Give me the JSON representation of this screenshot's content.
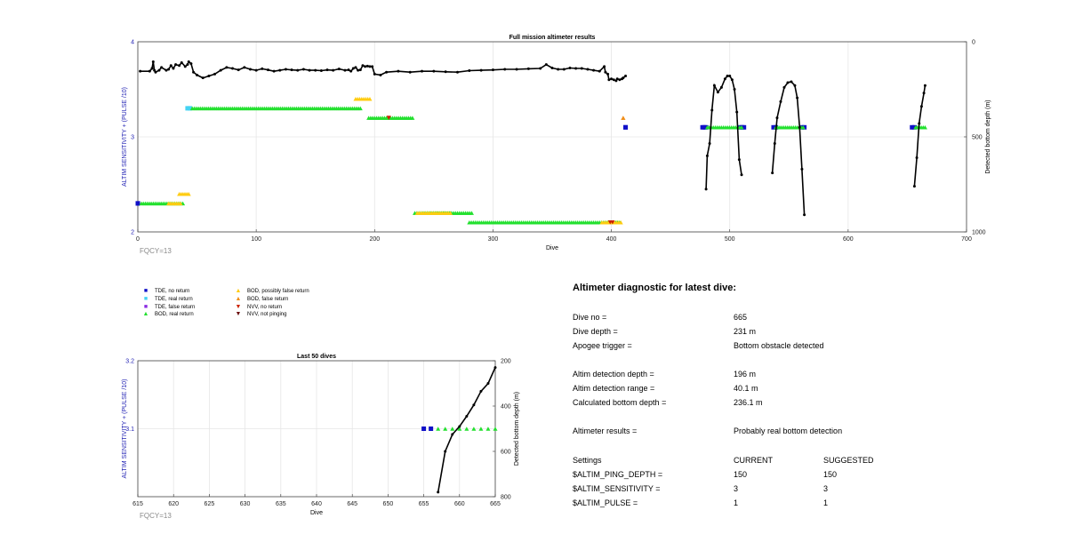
{
  "chart_data": [
    {
      "type": "scatter",
      "title": "Full mission altimeter results",
      "xlabel": "Dive",
      "ylabel": "ALTIM SENSITIVITY + (PULSE /10)",
      "y2label": "Detected bottom depth (m)",
      "xlim": [
        0,
        700
      ],
      "ylim": [
        2,
        4
      ],
      "y2lim": [
        0,
        1000
      ],
      "y2_reversed": true,
      "x_ticks": [
        "0",
        "100",
        "200",
        "300",
        "400",
        "500",
        "600",
        "700"
      ],
      "y_ticks": [
        "2",
        "3",
        "4"
      ],
      "y2_ticks": [
        "0",
        "500",
        "1000"
      ],
      "grid": true,
      "note": "FQCY=13",
      "series": [
        {
          "name": "TDE, real return",
          "marker": "square",
          "color": "#44d3f2",
          "segments": [
            [
              42,
              44,
              3.3
            ]
          ]
        },
        {
          "name": "TDE, no return",
          "marker": "square",
          "color": "#1010c8",
          "segments": [
            [
              0,
              0,
              2.3
            ],
            [
              412,
              412,
              3.1
            ],
            [
              477,
              480,
              3.1
            ],
            [
              509,
              512,
              3.1
            ],
            [
              537,
              539,
              3.1
            ],
            [
              561,
              563,
              3.1
            ],
            [
              654,
              656,
              3.1
            ]
          ]
        },
        {
          "name": "BOD, real return",
          "marker": "triangle",
          "color": "#22e02e",
          "segments": [
            [
              3,
              38,
              2.3
            ],
            [
              46,
              188,
              3.3
            ],
            [
              195,
              232,
              3.2
            ],
            [
              234,
              282,
              2.2
            ],
            [
              280,
              407,
              2.1
            ],
            [
              481,
              510,
              3.1
            ],
            [
              539,
              562,
              3.1
            ],
            [
              657,
              665,
              3.1
            ]
          ]
        },
        {
          "name": "BOD, possibly false return",
          "marker": "triangle",
          "color": "#ffcc11",
          "segments": [
            [
              35,
              43,
              2.4
            ],
            [
              184,
              196,
              3.4
            ],
            [
              26,
              36,
              2.3
            ],
            [
              236,
              264,
              2.2
            ],
            [
              392,
              408,
              2.1
            ]
          ]
        },
        {
          "name": "BOD, false return",
          "marker": "triangle",
          "color": "#f08e1a",
          "segments": [
            [
              410,
              410,
              3.2
            ]
          ]
        },
        {
          "name": "NVV, no return",
          "marker": "triangle-down",
          "color": "#cc2200",
          "segments": [
            [
              212,
              212,
              3.2
            ],
            [
              399,
              401,
              2.1
            ]
          ]
        }
      ],
      "bottom_depth": [
        {
          "x": [
            2,
            10,
            12,
            13,
            14,
            15,
            18,
            20,
            24,
            26,
            28,
            30,
            32,
            35,
            37,
            40,
            42,
            43,
            45,
            47,
            50,
            55,
            60,
            65,
            70,
            75,
            80,
            85,
            90,
            95,
            100,
            105,
            110,
            115,
            120,
            125,
            130,
            135,
            140,
            145,
            150,
            155,
            160,
            165,
            170,
            175,
            178,
            180,
            182,
            184,
            186,
            188,
            190,
            192,
            194,
            196,
            198,
            200,
            205,
            210,
            220,
            230,
            240,
            250,
            260,
            270,
            280,
            290,
            300,
            310,
            320,
            330,
            340,
            345,
            350,
            355,
            360,
            365,
            370,
            375,
            380,
            385,
            390,
            394,
            395,
            397,
            398,
            400,
            402,
            404,
            405,
            407,
            409,
            410,
            412
          ],
          "y": [
            155,
            155,
            140,
            105,
            150,
            160,
            150,
            135,
            150,
            145,
            125,
            140,
            120,
            125,
            110,
            130,
            120,
            105,
            115,
            160,
            175,
            190,
            180,
            170,
            150,
            135,
            140,
            148,
            135,
            145,
            150,
            142,
            148,
            155,
            150,
            145,
            148,
            150,
            145,
            150,
            150,
            152,
            148,
            150,
            143,
            150,
            148,
            155,
            140,
            135,
            150,
            148,
            125,
            130,
            128,
            130,
            130,
            170,
            175,
            160,
            155,
            160,
            155,
            155,
            158,
            160,
            152,
            150,
            148,
            145,
            145,
            142,
            140,
            120,
            138,
            145,
            145,
            138,
            140,
            140,
            145,
            150,
            155,
            130,
            160,
            170,
            200,
            195,
            200,
            205,
            195,
            200,
            195,
            190,
            180
          ]
        },
        {
          "x": [
            480,
            481,
            483,
            485,
            487,
            490,
            493,
            496,
            498,
            500,
            502,
            504,
            506,
            508,
            510
          ],
          "y": [
            775,
            600,
            535,
            360,
            230,
            265,
            240,
            195,
            180,
            180,
            200,
            250,
            370,
            620,
            700
          ]
        },
        {
          "x": [
            536,
            538,
            540,
            543,
            546,
            549,
            552,
            555,
            557,
            559,
            561,
            563
          ],
          "y": [
            690,
            535,
            400,
            315,
            240,
            215,
            210,
            230,
            295,
            450,
            670,
            910
          ]
        },
        {
          "x": [
            656,
            658,
            660,
            662,
            664,
            665
          ],
          "y": [
            760,
            610,
            430,
            340,
            270,
            230
          ]
        }
      ]
    },
    {
      "type": "scatter",
      "title": "Last 50 dives",
      "xlabel": "Dive",
      "ylabel": "ALTIM SENSITIVITY + (PULSE /10)",
      "y2label": "Detected bottom depth (m)",
      "xlim": [
        615,
        665
      ],
      "ylim": [
        3.0,
        3.2
      ],
      "y2lim": [
        200,
        800
      ],
      "y2_reversed": true,
      "x_ticks": [
        "615",
        "620",
        "625",
        "630",
        "635",
        "640",
        "645",
        "650",
        "655",
        "660",
        "665"
      ],
      "y_ticks": [
        "3.1",
        "3.2"
      ],
      "y2_ticks": [
        "200",
        "400",
        "600",
        "800"
      ],
      "grid": true,
      "note": "FQCY=13",
      "series": [
        {
          "name": "TDE, no return",
          "marker": "square",
          "color": "#1010c8",
          "points": [
            [
              655,
              3.1
            ],
            [
              656,
              3.1
            ]
          ]
        },
        {
          "name": "BOD, real return",
          "marker": "triangle",
          "color": "#22e02e",
          "points": [
            [
              657,
              3.1
            ],
            [
              658,
              3.1
            ],
            [
              659,
              3.1
            ],
            [
              660,
              3.1
            ],
            [
              661,
              3.1
            ],
            [
              662,
              3.1
            ],
            [
              663,
              3.1
            ],
            [
              664,
              3.1
            ],
            [
              665,
              3.1
            ]
          ]
        }
      ],
      "bottom_depth": [
        {
          "x": [
            657,
            658,
            659,
            660,
            661,
            662,
            663,
            664,
            665
          ],
          "y": [
            780,
            600,
            525,
            490,
            445,
            395,
            335,
            300,
            230
          ]
        }
      ]
    }
  ],
  "legend": {
    "items": [
      {
        "label": "TDE, no return",
        "color": "#1010c8",
        "marker": "square"
      },
      {
        "label": "TDE, real return",
        "color": "#44d3f2",
        "marker": "square"
      },
      {
        "label": "TDE, false return",
        "color": "#8a2be2",
        "marker": "square"
      },
      {
        "label": "BOD, real return",
        "color": "#22e02e",
        "marker": "triangle"
      },
      {
        "label": "BOD, possibly false return",
        "color": "#ffcc11",
        "marker": "triangle"
      },
      {
        "label": "BOD, false return",
        "color": "#f08e1a",
        "marker": "triangle"
      },
      {
        "label": "NVV, no return",
        "color": "#cc2200",
        "marker": "triangle-down"
      },
      {
        "label": "NVV, not pinging",
        "color": "#6b0e0e",
        "marker": "triangle-down"
      }
    ]
  },
  "diagnostic": {
    "title": "Altimeter diagnostic for latest dive:",
    "rows": [
      {
        "label": "Dive no =",
        "value": "665"
      },
      {
        "label": "Dive depth =",
        "value": "231 m"
      },
      {
        "label": "Apogee trigger =",
        "value": "Bottom obstacle detected"
      },
      {
        "label": "Altim detection depth =",
        "value": "196 m"
      },
      {
        "label": "Altim detection range =",
        "value": "40.1 m"
      },
      {
        "label": "Calculated bottom depth =",
        "value": "236.1 m"
      },
      {
        "label": "Altimeter results =",
        "value": "Probably real bottom detection"
      }
    ],
    "settings_header": {
      "label": "Settings",
      "current": "CURRENT",
      "suggested": "SUGGESTED"
    },
    "settings": [
      {
        "label": "$ALTIM_PING_DEPTH =",
        "current": "150",
        "suggested": "150"
      },
      {
        "label": "$ALTIM_SENSITIVITY =",
        "current": "3",
        "suggested": "3"
      },
      {
        "label": "$ALTIM_PULSE =",
        "current": "1",
        "suggested": "1"
      }
    ]
  }
}
